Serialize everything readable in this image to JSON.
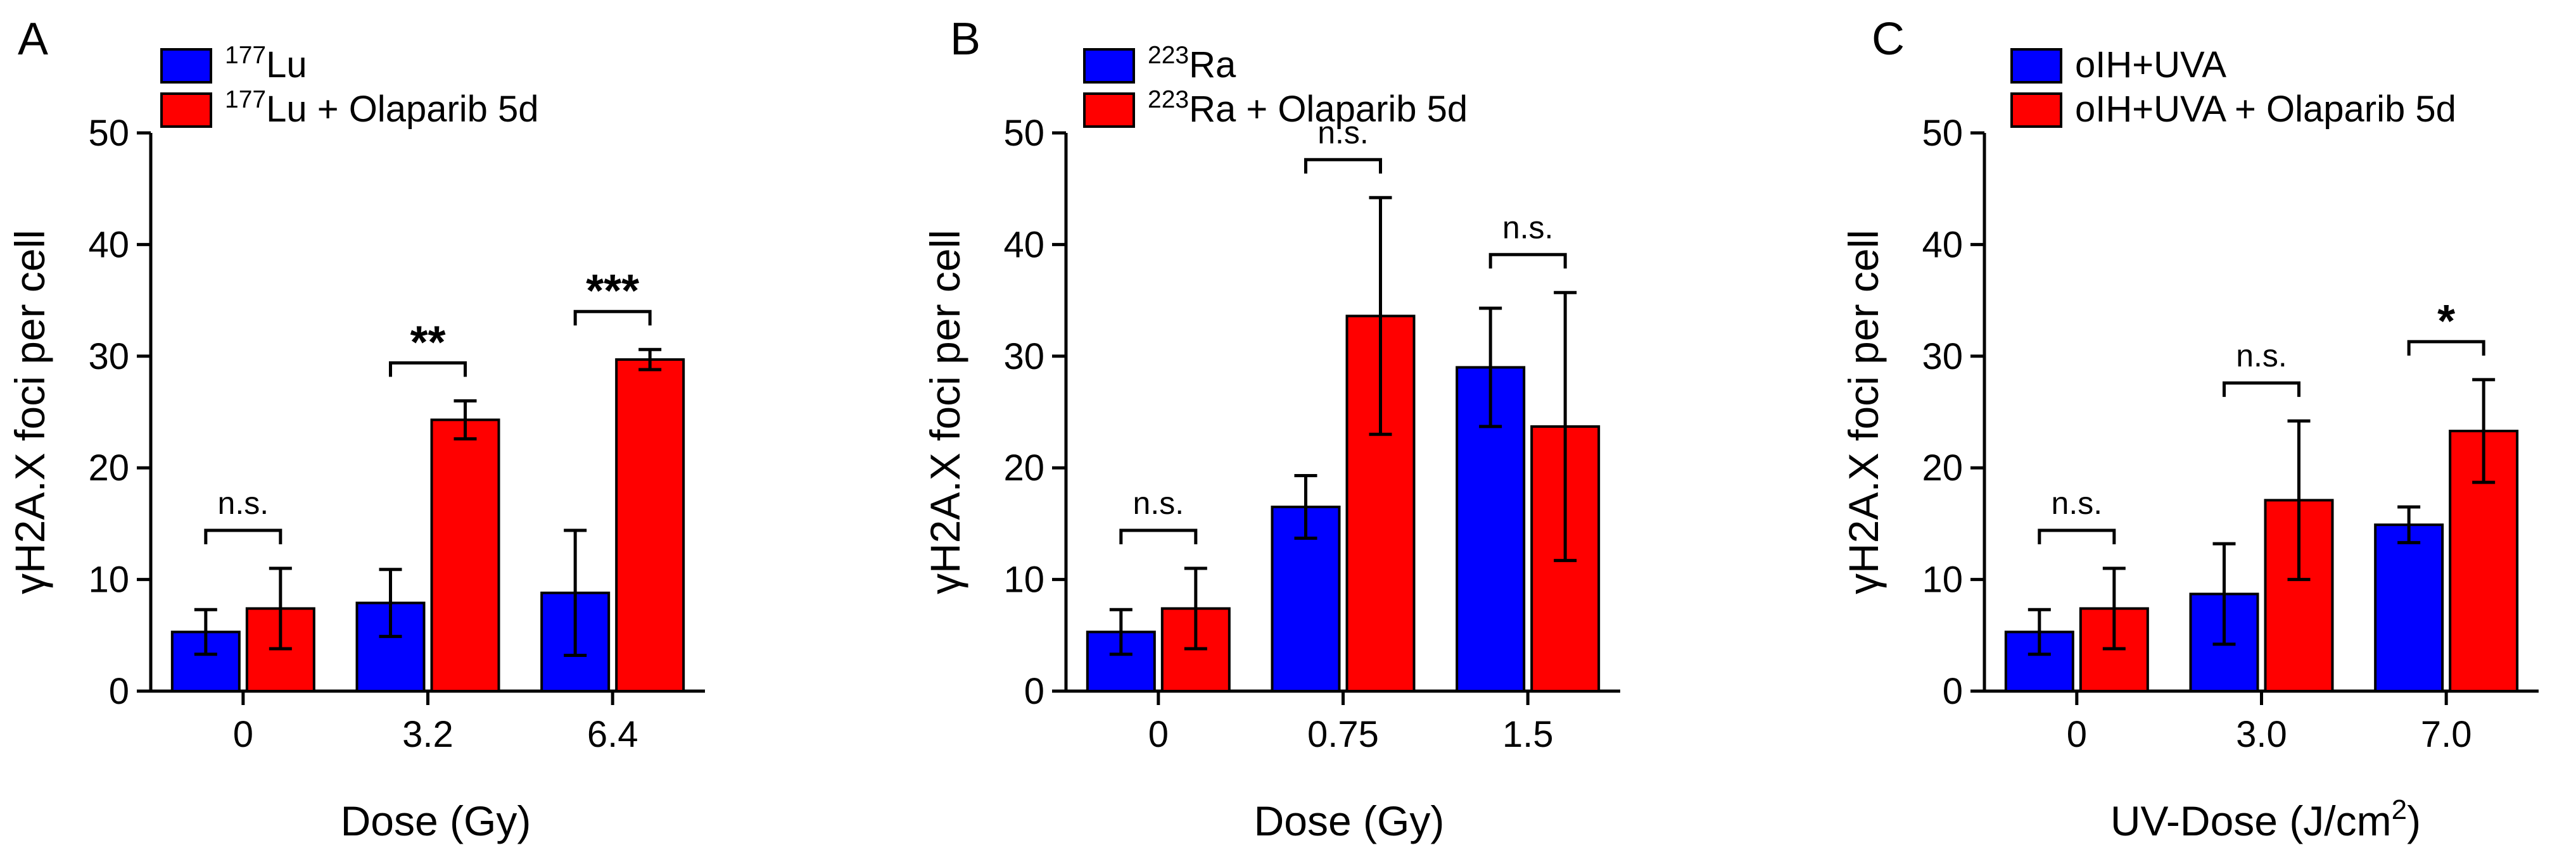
{
  "colors": {
    "series_blue": "#0000ff",
    "series_red": "#ff0000",
    "axis": "#000000",
    "text": "#000000"
  },
  "chart_data": [
    {
      "panel": "A",
      "type": "bar",
      "ylabel": "γH2A.X foci per cell",
      "xlabel": "Dose (Gy)",
      "xlabel_superscript": "",
      "xlabel_after": "",
      "categories": [
        "0",
        "3.2",
        "6.4"
      ],
      "ylim": [
        0,
        50
      ],
      "yticks": [
        "0",
        "10",
        "20",
        "30",
        "40",
        "50"
      ],
      "grid": false,
      "legend_position": "top-left",
      "series": [
        {
          "name": "Lu",
          "name_superscript": "177",
          "color": "#0000ff",
          "values": [
            5.3,
            7.9,
            8.8
          ],
          "errors": [
            2.0,
            3.0,
            5.6
          ]
        },
        {
          "name": "Lu + Olaparib 5d",
          "name_superscript": "177",
          "color": "#ff0000",
          "values": [
            7.4,
            24.3,
            29.7
          ],
          "errors": [
            3.6,
            1.7,
            0.9
          ]
        }
      ],
      "significance": [
        "n.s.",
        "**",
        "***"
      ]
    },
    {
      "panel": "B",
      "type": "bar",
      "ylabel": "γH2A.X foci per cell",
      "xlabel": "Dose (Gy)",
      "xlabel_superscript": "",
      "xlabel_after": "",
      "categories": [
        "0",
        "0.75",
        "1.5"
      ],
      "ylim": [
        0,
        50
      ],
      "yticks": [
        "0",
        "10",
        "20",
        "30",
        "40",
        "50"
      ],
      "grid": false,
      "legend_position": "top-left",
      "series": [
        {
          "name": "Ra",
          "name_superscript": "223",
          "color": "#0000ff",
          "values": [
            5.3,
            16.5,
            29.0
          ],
          "errors": [
            2.0,
            2.8,
            5.3
          ]
        },
        {
          "name": "Ra + Olaparib 5d",
          "name_superscript": "223",
          "color": "#ff0000",
          "values": [
            7.4,
            33.6,
            23.7
          ],
          "errors": [
            3.6,
            10.6,
            12.0
          ]
        }
      ],
      "significance": [
        "n.s.",
        "n.s.",
        "n.s."
      ]
    },
    {
      "panel": "C",
      "type": "bar",
      "ylabel": "γH2A.X foci per cell",
      "xlabel": "UV-Dose (J/cm",
      "xlabel_superscript": "2",
      "xlabel_after": ")",
      "categories": [
        "0",
        "3.0",
        "7.0"
      ],
      "ylim": [
        0,
        50
      ],
      "yticks": [
        "0",
        "10",
        "20",
        "30",
        "40",
        "50"
      ],
      "grid": false,
      "legend_position": "top-left",
      "series": [
        {
          "name": "oIH+UVA",
          "name_superscript": "",
          "color": "#0000ff",
          "values": [
            5.3,
            8.7,
            14.9
          ],
          "errors": [
            2.0,
            4.5,
            1.6
          ]
        },
        {
          "name": "oIH+UVA + Olaparib 5d",
          "name_superscript": "",
          "color": "#ff0000",
          "values": [
            7.4,
            17.1,
            23.3
          ],
          "errors": [
            3.6,
            7.1,
            4.6
          ]
        }
      ],
      "significance": [
        "n.s.",
        "n.s.",
        "*"
      ]
    }
  ]
}
